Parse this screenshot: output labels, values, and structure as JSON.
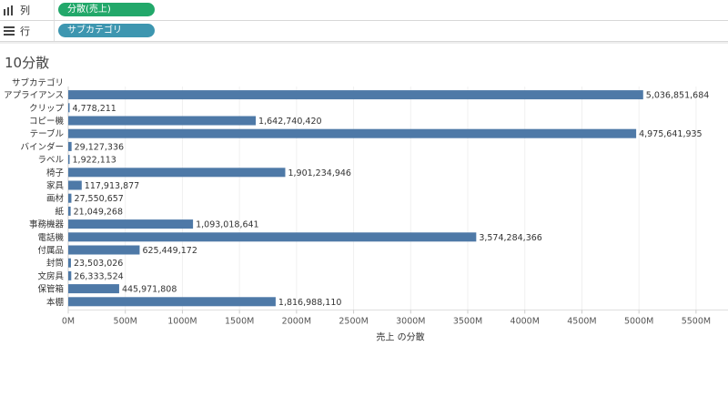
{
  "shelves": {
    "columns": {
      "label": "列",
      "icon": "columns-icon",
      "pill": "分散(売上)",
      "pill_color": "#22a86a"
    },
    "rows": {
      "label": "行",
      "icon": "rows-icon",
      "pill": "サブカテゴリ",
      "pill_color": "#3d96b0"
    }
  },
  "title": "10分散",
  "chart_data": {
    "type": "bar",
    "orientation": "horizontal",
    "row_header": "サブカテゴリ",
    "categories": [
      "アプライアンス",
      "クリップ",
      "コピー機",
      "テーブル",
      "バインダー",
      "ラベル",
      "椅子",
      "家具",
      "画材",
      "紙",
      "事務機器",
      "電話機",
      "付属品",
      "封筒",
      "文房具",
      "保管箱",
      "本棚"
    ],
    "values": [
      5036851684,
      4778211,
      1642740420,
      4975641935,
      29127336,
      1922113,
      1901234946,
      117913877,
      27550657,
      21049268,
      1093018641,
      3574284366,
      625449172,
      23503026,
      26333524,
      445971808,
      1816988110
    ],
    "data_labels": [
      "5,036,851,684",
      "4,778,211",
      "1,642,740,420",
      "4,975,641,935",
      "29,127,336",
      "1,922,113",
      "1,901,234,946",
      "117,913,877",
      "27,550,657",
      "21,049,268",
      "1,093,018,641",
      "3,574,284,366",
      "625,449,172",
      "23,503,026",
      "26,333,524",
      "445,971,808",
      "1,816,988,110"
    ],
    "xticks": [
      "0M",
      "500M",
      "1000M",
      "1500M",
      "2000M",
      "2500M",
      "3000M",
      "3500M",
      "4000M",
      "4500M",
      "5000M",
      "5500M"
    ],
    "xtick_values": [
      0,
      500000000,
      1000000000,
      1500000000,
      2000000000,
      2500000000,
      3000000000,
      3500000000,
      4000000000,
      4500000000,
      5000000000,
      5500000000
    ],
    "xlim": [
      0,
      5780000000
    ],
    "xlabel": "売上 の分散",
    "bar_color": "#4e79a7",
    "grid": true
  }
}
